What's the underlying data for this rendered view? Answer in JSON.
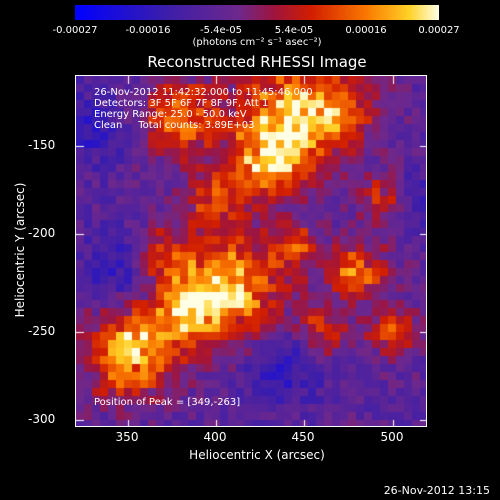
{
  "colorbar": {
    "ticks": [
      "-0.00027",
      "-0.00016",
      "-5.4e-05",
      "5.4e-05",
      "0.00016",
      "0.00027"
    ],
    "units": "(photons cm⁻² s⁻¹ asec⁻²)"
  },
  "title": "Reconstructed RHESSI Image",
  "info": {
    "time": "26-Nov-2012 11:42:32.000 to 11:45:46.000",
    "detectors": "Detectors: 3F 5F 6F 7F 8F 9F, Att 1",
    "energy": "Energy Range: 25.0 - 50.0 keV",
    "clean": "Clean     Total counts: 3.89E+03",
    "peak": "Position of Peak = [349,-263]"
  },
  "axes": {
    "xlabel": "Heliocentric X (arcsec)",
    "ylabel": "Heliocentric Y (arcsec)",
    "xticks": [
      "350",
      "400",
      "450",
      "500"
    ],
    "yticks": [
      "-150",
      "-200",
      "-250",
      "-300"
    ]
  },
  "footer": "26-Nov-2012 13:15"
}
